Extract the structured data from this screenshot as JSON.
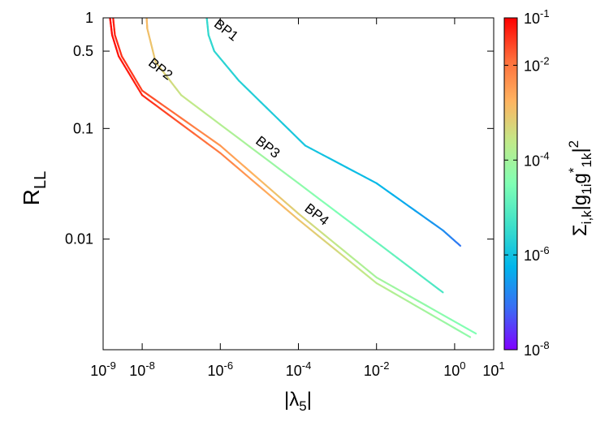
{
  "chart_data": {
    "type": "line",
    "xlabel": {
      "main": "|λ",
      "sub": "5",
      "tail": "|"
    },
    "ylabel": {
      "main": "R",
      "sub": "LL"
    },
    "xscale": "log",
    "yscale": "log",
    "xlim": [
      1e-09,
      10
    ],
    "ylim": [
      0.001,
      1
    ],
    "xticks": [
      {
        "value": 1e-09,
        "base": "10",
        "exp": "-9"
      },
      {
        "value": 1e-08,
        "base": "10",
        "exp": "-8"
      },
      {
        "value": 1e-06,
        "base": "10",
        "exp": "-6"
      },
      {
        "value": 0.0001,
        "base": "10",
        "exp": "-4"
      },
      {
        "value": 0.01,
        "base": "10",
        "exp": "-2"
      },
      {
        "value": 1,
        "base": "10",
        "exp": "0"
      },
      {
        "value": 10,
        "base": "10",
        "exp": "1"
      }
    ],
    "yticks": [
      {
        "value": 1,
        "label": "1"
      },
      {
        "value": 0.5,
        "label": "0.5"
      },
      {
        "value": 0.1,
        "label": "0.1"
      },
      {
        "value": 0.01,
        "label": "0.01"
      }
    ],
    "colorbar": {
      "label": "Σ_{i,k}|g_{1i} g*_{1k}|^2",
      "label_parts": {
        "sigma": "Σ",
        "sub1": "i,k",
        "mid": "|g",
        "sub2": "1i",
        "g2": "g",
        "sup": "*",
        "sub3": "1k",
        "end": "|",
        "pow": "2"
      },
      "scale": "log",
      "range": [
        1e-08,
        0.1
      ],
      "ticks": [
        {
          "value": 0.1,
          "base": "10",
          "exp": "-1"
        },
        {
          "value": 0.01,
          "base": "10",
          "exp": "-2"
        },
        {
          "value": 0.0001,
          "base": "10",
          "exp": "-4"
        },
        {
          "value": 1e-06,
          "base": "10",
          "exp": "-6"
        },
        {
          "value": 1e-08,
          "base": "10",
          "exp": "-8"
        }
      ],
      "colors": [
        "#8000ff",
        "#3a6cf4",
        "#00b5eb",
        "#3ee0c9",
        "#80ffb4",
        "#c0ea8a",
        "#ffb360",
        "#ff6c3a",
        "#ff0000"
      ]
    },
    "series": [
      {
        "name": "BP1",
        "label_at": {
          "x": 1.2e-06,
          "y": 0.72
        },
        "points": [
          {
            "x": 4.5e-07,
            "y": 1.0,
            "c": 3e-06
          },
          {
            "x": 5e-07,
            "y": 0.7,
            "c": 3e-06
          },
          {
            "x": 7e-07,
            "y": 0.5,
            "c": 2.6e-06
          },
          {
            "x": 3e-06,
            "y": 0.27,
            "c": 2e-06
          },
          {
            "x": 0.00015,
            "y": 0.07,
            "c": 1.2e-06
          },
          {
            "x": 0.01,
            "y": 0.032,
            "c": 7e-07
          },
          {
            "x": 0.5,
            "y": 0.012,
            "c": 2e-07
          },
          {
            "x": 1.4,
            "y": 0.0087,
            "c": 1e-07
          }
        ]
      },
      {
        "name": "BP2",
        "label_at": {
          "x": 2.5e-08,
          "y": 0.32
        },
        "points": [
          {
            "x": 1.3e-08,
            "y": 1.0,
            "c": 0.0015
          },
          {
            "x": 1.35e-08,
            "y": 0.8,
            "c": 0.0012
          },
          {
            "x": 2.2e-08,
            "y": 0.4,
            "c": 0.0008
          },
          {
            "x": 1e-07,
            "y": 0.2,
            "c": 0.0003
          },
          {
            "x": 0.0001,
            "y": 0.032,
            "c": 5e-05
          },
          {
            "x": 0.02,
            "y": 0.0078,
            "c": 1.5e-05
          },
          {
            "x": 0.5,
            "y": 0.0033,
            "c": 6e-06
          }
        ]
      },
      {
        "name": "BP3",
        "label_at": {
          "x": 1.4e-05,
          "y": 0.063
        },
        "points": [
          {
            "x": 1.8e-09,
            "y": 1.0,
            "c": 0.06
          },
          {
            "x": 2e-09,
            "y": 0.7,
            "c": 0.05
          },
          {
            "x": 3e-09,
            "y": 0.45,
            "c": 0.04
          },
          {
            "x": 1e-08,
            "y": 0.22,
            "c": 0.03
          },
          {
            "x": 1e-06,
            "y": 0.07,
            "c": 0.004
          },
          {
            "x": 0.0001,
            "y": 0.017,
            "c": 0.0006
          },
          {
            "x": 0.01,
            "y": 0.0045,
            "c": 0.0001
          },
          {
            "x": 3.5,
            "y": 0.0014,
            "c": 3e-05
          }
        ]
      },
      {
        "name": "BP4",
        "label_at": {
          "x": 0.00025,
          "y": 0.0155
        },
        "points": [
          {
            "x": 1.5e-09,
            "y": 1.0,
            "c": 0.09
          },
          {
            "x": 1.7e-09,
            "y": 0.7,
            "c": 0.08
          },
          {
            "x": 2.5e-09,
            "y": 0.45,
            "c": 0.07
          },
          {
            "x": 1e-08,
            "y": 0.2,
            "c": 0.05
          },
          {
            "x": 1e-06,
            "y": 0.06,
            "c": 0.008
          },
          {
            "x": 0.0001,
            "y": 0.015,
            "c": 0.001
          },
          {
            "x": 0.01,
            "y": 0.004,
            "c": 0.0002
          },
          {
            "x": 2.5,
            "y": 0.0013,
            "c": 5e-05
          }
        ]
      }
    ]
  }
}
